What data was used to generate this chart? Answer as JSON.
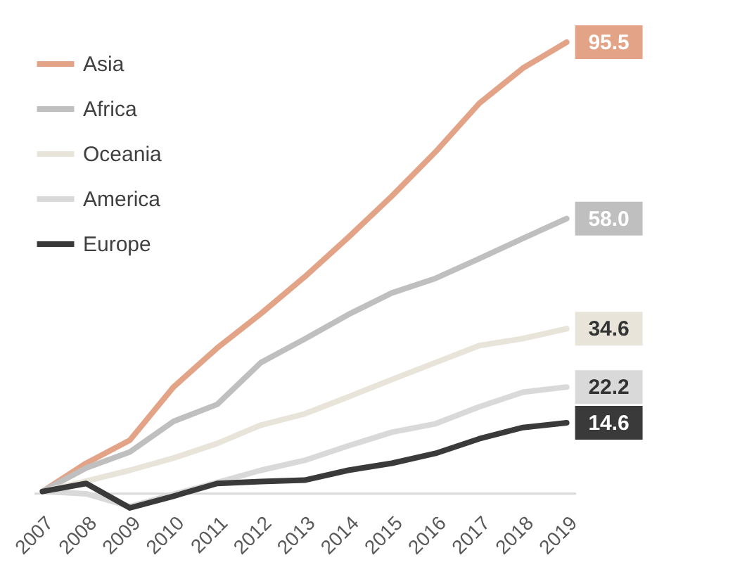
{
  "chart_data": {
    "type": "line",
    "categories": [
      "2007",
      "2008",
      "2009",
      "2010",
      "2011",
      "2012",
      "2013",
      "2014",
      "2015",
      "2016",
      "2017",
      "2018",
      "2019"
    ],
    "series": [
      {
        "name": "Asia",
        "color": "#e2a386",
        "values": [
          0,
          6.0,
          10.9,
          22.2,
          30.5,
          37.8,
          45.6,
          54.0,
          62.8,
          72.2,
          82.5,
          90.0,
          95.5
        ],
        "value_labels": [
          null,
          null,
          null,
          null,
          null,
          null,
          null,
          null,
          null,
          null,
          null,
          null,
          "95.5"
        ]
      },
      {
        "name": "Africa",
        "color": "#bfbfbf",
        "values": [
          0,
          5.0,
          8.4,
          14.9,
          18.5,
          27.4,
          32.4,
          37.6,
          42.2,
          45.3,
          49.5,
          53.8,
          58.0
        ],
        "value_labels": [
          null,
          null,
          null,
          null,
          null,
          null,
          null,
          null,
          null,
          null,
          null,
          null,
          "58.0"
        ]
      },
      {
        "name": "Oceania",
        "color": "#e8e4da",
        "values": [
          0,
          2.2,
          4.5,
          7.1,
          10.2,
          14.1,
          16.5,
          20.1,
          23.8,
          27.4,
          31.0,
          32.5,
          34.6
        ],
        "value_labels": [
          null,
          null,
          null,
          null,
          null,
          null,
          null,
          null,
          null,
          null,
          null,
          null,
          "34.6"
        ]
      },
      {
        "name": "America",
        "color": "#d9d9d9",
        "values": [
          0,
          -0.5,
          -3.2,
          -0.6,
          1.9,
          4.5,
          6.6,
          9.7,
          12.6,
          14.4,
          18.0,
          21.1,
          22.2
        ],
        "value_labels": [
          null,
          null,
          null,
          null,
          null,
          null,
          null,
          null,
          null,
          null,
          null,
          null,
          "22.2"
        ]
      },
      {
        "name": "Europe",
        "color": "#3a3a3a",
        "values": [
          0,
          1.7,
          -3.5,
          -1.0,
          1.7,
          2.1,
          2.4,
          4.5,
          6.0,
          8.1,
          11.2,
          13.6,
          14.6
        ],
        "value_labels": [
          null,
          null,
          null,
          null,
          null,
          null,
          null,
          null,
          null,
          null,
          null,
          null,
          "14.6"
        ]
      }
    ],
    "tick_labels": "x",
    "legend": "top left",
    "grid": false,
    "marker": "none",
    "line_style": "solid"
  }
}
